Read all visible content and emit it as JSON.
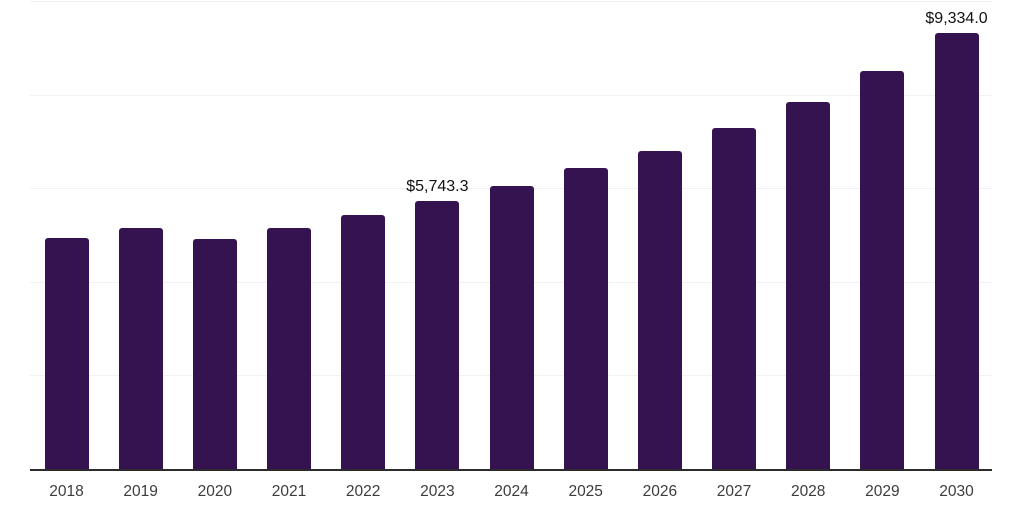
{
  "chart": {
    "colors": {
      "background": "#ffffff",
      "bar": "#351250",
      "gridline": "#f2f2f2",
      "axis_line": "#2b2b2b",
      "tick_text": "#3c3c3c",
      "value_label_text": "#111111"
    }
  },
  "chart_data": {
    "type": "bar",
    "title": "",
    "xlabel": "",
    "ylabel": "",
    "categories": [
      "2018",
      "2019",
      "2020",
      "2021",
      "2022",
      "2023",
      "2024",
      "2025",
      "2026",
      "2027",
      "2028",
      "2029",
      "2030"
    ],
    "values": [
      4958,
      5172,
      4937,
      5161,
      5450,
      5743.3,
      6070,
      6443,
      6818,
      7310,
      7865,
      8527,
      9334.0
    ],
    "value_labels": [
      null,
      null,
      null,
      null,
      null,
      "$5,743.3",
      null,
      null,
      null,
      null,
      null,
      null,
      "$9,334.0"
    ],
    "ylim": [
      0,
      10000
    ],
    "gridline_values": [
      2000,
      4000,
      6000,
      8000,
      10000
    ],
    "grid": true,
    "legend": "none"
  }
}
